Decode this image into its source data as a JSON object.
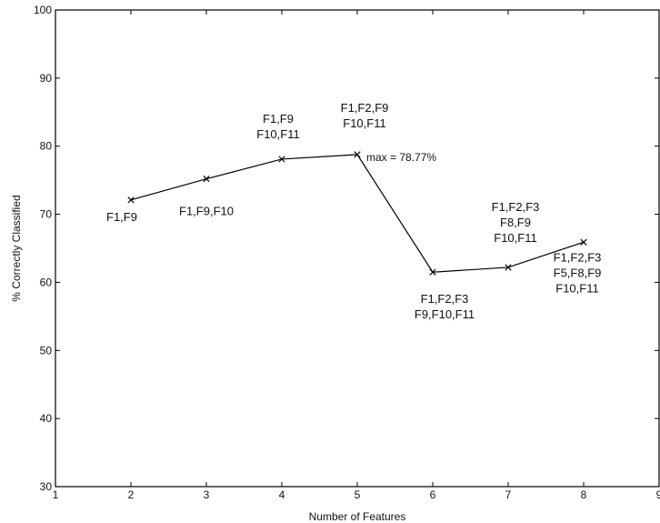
{
  "chart_data": {
    "type": "line",
    "title": "",
    "xlabel": "Number of Features",
    "ylabel": "% Correctly Classified",
    "xlim": [
      1,
      9
    ],
    "ylim": [
      30,
      100
    ],
    "x_ticks": [
      1,
      2,
      3,
      4,
      5,
      6,
      7,
      8,
      9
    ],
    "y_ticks": [
      30,
      40,
      50,
      60,
      70,
      80,
      90,
      100
    ],
    "grid": false,
    "legend": "none",
    "series": [
      {
        "x": [
          2,
          3,
          4,
          5,
          6,
          7,
          8
        ],
        "y": [
          72.1,
          75.2,
          78.1,
          78.77,
          61.5,
          62.2,
          65.9
        ],
        "marker": "x",
        "color": "#000000"
      }
    ],
    "annotations": [
      {
        "x": 2,
        "position": "below",
        "lines": [
          "F1,F9"
        ]
      },
      {
        "x": 3,
        "position": "below",
        "lines": [
          "F1,F9,F10"
        ]
      },
      {
        "x": 4,
        "position": "above",
        "lines": [
          "F1,F9",
          "F10,F11"
        ]
      },
      {
        "x": 5,
        "position": "above",
        "lines": [
          "F1,F2,F9",
          "F10,F11"
        ]
      },
      {
        "x": 6,
        "position": "below",
        "lines": [
          "F1,F2,F3",
          "F9,F10,F11"
        ]
      },
      {
        "x": 7,
        "position": "above",
        "lines": [
          "F1,F2,F3",
          "F8,F9",
          "F10,F11"
        ]
      },
      {
        "x": 8,
        "position": "below",
        "lines": [
          "F1,F2,F3",
          "F5,F8,F9",
          "F10,F11"
        ]
      }
    ],
    "max_annotation": "max = 78.77%"
  }
}
